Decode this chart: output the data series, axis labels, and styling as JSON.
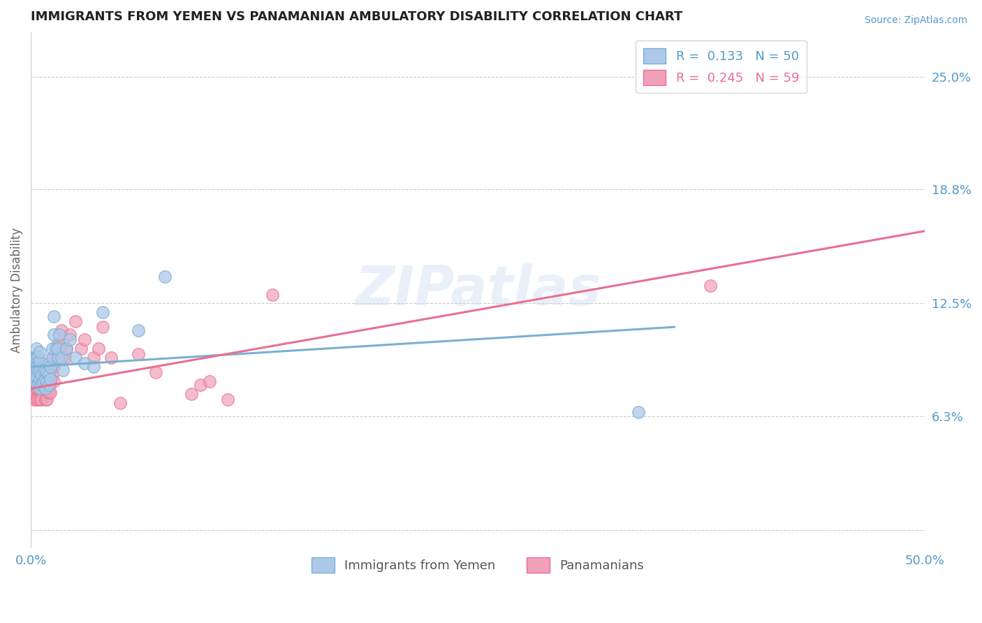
{
  "title": "IMMIGRANTS FROM YEMEN VS PANAMANIAN AMBULATORY DISABILITY CORRELATION CHART",
  "source_text": "Source: ZipAtlas.com",
  "ylabel": "Ambulatory Disability",
  "watermark": "ZIPatlas",
  "xlim": [
    0.0,
    0.5
  ],
  "ylim": [
    -0.01,
    0.275
  ],
  "yticks": [
    0.0,
    0.0625,
    0.125,
    0.188,
    0.25
  ],
  "ytick_labels": [
    "",
    "6.3%",
    "12.5%",
    "18.8%",
    "25.0%"
  ],
  "legend_r1": "R =  0.133",
  "legend_n1": "N = 50",
  "legend_r2": "R =  0.245",
  "legend_n2": "N = 59",
  "blue_color": "#7bafd4",
  "pink_color": "#e87090",
  "blue_fill": "#adc8e8",
  "pink_fill": "#f0a0b8",
  "grid_color": "#cccccc",
  "axis_label_color": "#5599cc",
  "blue_points_x": [
    0.001,
    0.001,
    0.002,
    0.002,
    0.002,
    0.003,
    0.003,
    0.003,
    0.003,
    0.004,
    0.004,
    0.004,
    0.005,
    0.005,
    0.005,
    0.005,
    0.005,
    0.006,
    0.006,
    0.007,
    0.007,
    0.008,
    0.008,
    0.008,
    0.009,
    0.009,
    0.01,
    0.01,
    0.01,
    0.011,
    0.011,
    0.012,
    0.012,
    0.013,
    0.013,
    0.014,
    0.015,
    0.015,
    0.016,
    0.017,
    0.018,
    0.02,
    0.022,
    0.025,
    0.03,
    0.035,
    0.04,
    0.06,
    0.075,
    0.34
  ],
  "blue_points_y": [
    0.09,
    0.095,
    0.082,
    0.088,
    0.095,
    0.085,
    0.09,
    0.095,
    0.1,
    0.08,
    0.088,
    0.096,
    0.078,
    0.083,
    0.088,
    0.093,
    0.098,
    0.08,
    0.086,
    0.082,
    0.088,
    0.078,
    0.083,
    0.088,
    0.082,
    0.087,
    0.08,
    0.086,
    0.092,
    0.083,
    0.09,
    0.095,
    0.1,
    0.118,
    0.108,
    0.1,
    0.095,
    0.1,
    0.108,
    0.095,
    0.088,
    0.1,
    0.105,
    0.095,
    0.092,
    0.09,
    0.12,
    0.11,
    0.14,
    0.065
  ],
  "pink_points_x": [
    0.001,
    0.001,
    0.001,
    0.002,
    0.002,
    0.002,
    0.003,
    0.003,
    0.003,
    0.003,
    0.004,
    0.004,
    0.004,
    0.005,
    0.005,
    0.005,
    0.005,
    0.006,
    0.006,
    0.006,
    0.007,
    0.007,
    0.008,
    0.008,
    0.008,
    0.009,
    0.009,
    0.01,
    0.01,
    0.011,
    0.011,
    0.012,
    0.012,
    0.013,
    0.013,
    0.015,
    0.015,
    0.016,
    0.017,
    0.018,
    0.019,
    0.02,
    0.022,
    0.025,
    0.028,
    0.03,
    0.035,
    0.038,
    0.04,
    0.045,
    0.05,
    0.06,
    0.07,
    0.09,
    0.095,
    0.1,
    0.11,
    0.135,
    0.38
  ],
  "pink_points_y": [
    0.088,
    0.092,
    0.078,
    0.082,
    0.088,
    0.072,
    0.078,
    0.083,
    0.088,
    0.072,
    0.078,
    0.083,
    0.072,
    0.078,
    0.083,
    0.088,
    0.072,
    0.083,
    0.072,
    0.078,
    0.082,
    0.078,
    0.072,
    0.078,
    0.083,
    0.078,
    0.072,
    0.08,
    0.076,
    0.082,
    0.076,
    0.086,
    0.095,
    0.082,
    0.09,
    0.097,
    0.103,
    0.095,
    0.11,
    0.103,
    0.095,
    0.1,
    0.108,
    0.115,
    0.1,
    0.105,
    0.095,
    0.1,
    0.112,
    0.095,
    0.07,
    0.097,
    0.087,
    0.075,
    0.08,
    0.082,
    0.072,
    0.13,
    0.135
  ],
  "blue_trend_x0": 0.0,
  "blue_trend_x1": 0.36,
  "blue_trend_y0": 0.09,
  "blue_trend_y1": 0.112,
  "pink_trend_x0": 0.0,
  "pink_trend_x1": 0.5,
  "pink_trend_y0": 0.078,
  "pink_trend_y1": 0.165
}
